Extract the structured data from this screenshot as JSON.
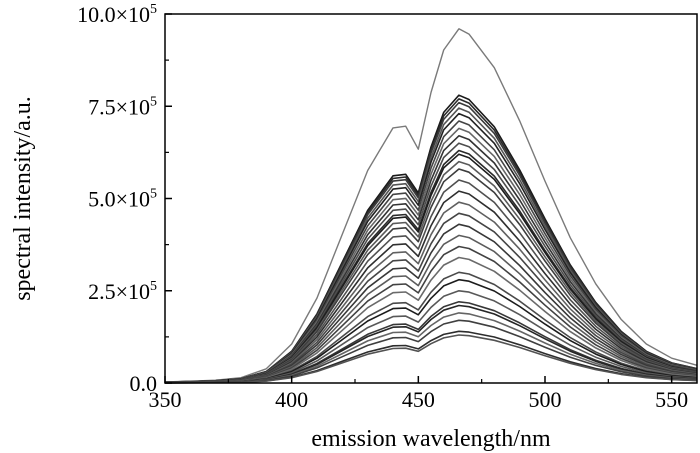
{
  "chart_data": {
    "type": "line",
    "title": "",
    "xlabel": "emission wavelength/nm",
    "ylabel": "spectral intensity/a.u.",
    "xlim": [
      350,
      560
    ],
    "ylim": [
      0,
      1000000
    ],
    "x_ticks": [
      {
        "value": 350,
        "label": "350"
      },
      {
        "value": 400,
        "label": "400"
      },
      {
        "value": 450,
        "label": "450"
      },
      {
        "value": 500,
        "label": "500"
      },
      {
        "value": 550,
        "label": "550"
      }
    ],
    "y_ticks": [
      {
        "value": 0,
        "mantissa": "0.0",
        "exp": ""
      },
      {
        "value": 250000,
        "mantissa": "2.5×10",
        "exp": "5"
      },
      {
        "value": 500000,
        "mantissa": "5.0×10",
        "exp": "5"
      },
      {
        "value": 750000,
        "mantissa": "7.5×10",
        "exp": "5"
      },
      {
        "value": 1000000,
        "mantissa": "10.0×10",
        "exp": "5"
      }
    ],
    "grid": false,
    "legend": "none",
    "x": [
      350,
      360,
      370,
      380,
      390,
      400,
      410,
      420,
      430,
      440,
      445,
      450,
      455,
      460,
      466,
      470,
      480,
      490,
      500,
      510,
      520,
      530,
      540,
      550,
      560
    ],
    "series_shape": [
      0.003,
      0.005,
      0.008,
      0.015,
      0.04,
      0.11,
      0.24,
      0.42,
      0.6,
      0.72,
      0.725,
      0.66,
      0.82,
      0.94,
      1.0,
      0.985,
      0.89,
      0.74,
      0.57,
      0.41,
      0.28,
      0.18,
      0.11,
      0.07,
      0.05
    ],
    "series_peaks": [
      960000,
      780000,
      770000,
      760000,
      745000,
      730000,
      710000,
      690000,
      670000,
      650000,
      630000,
      620000,
      600000,
      580000,
      550000,
      520000,
      490000,
      460000,
      430000,
      400000,
      370000,
      340000,
      300000,
      280000,
      250000,
      220000,
      210000,
      190000,
      170000,
      140000,
      130000
    ],
    "series_colors": [
      "#7a7a7a",
      "#1a1a1a",
      "#2a2a2a",
      "#3a3a3a",
      "#555555",
      "#222222",
      "#444444",
      "#666666",
      "#333333",
      "#4d4d4d",
      "#2b2b2b",
      "#1e1e1e",
      "#5a5a5a",
      "#3d3d3d",
      "#505050",
      "#2f2f2f",
      "#606060",
      "#454545",
      "#383838",
      "#5c5c5c",
      "#424242",
      "#6a6a6a",
      "#4a4a4a",
      "#1c1c1c",
      "#585858",
      "#373737",
      "#262626",
      "#646464",
      "#3f3f3f",
      "#2d2d2d",
      "#525252"
    ],
    "axis_color": "#000000"
  }
}
